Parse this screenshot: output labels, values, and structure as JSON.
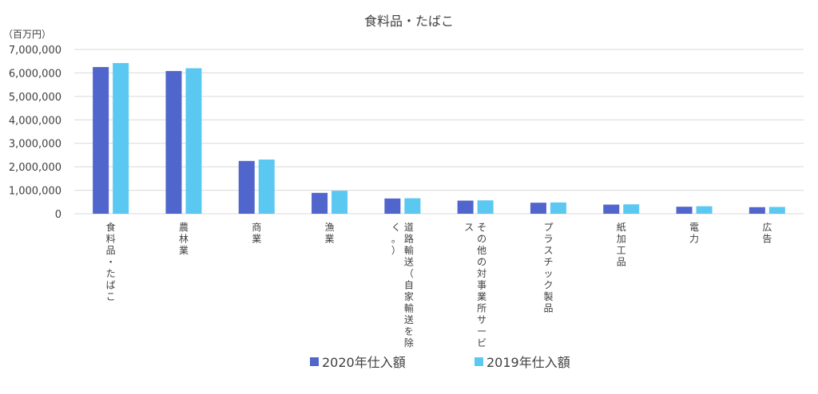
{
  "chart_data": {
    "type": "bar",
    "title": "食料品・たばこ",
    "unit_label": "（百万円）",
    "ylim": [
      0,
      7000000
    ],
    "y_ticks": [
      "0",
      "1,000,000",
      "2,000,000",
      "3,000,000",
      "4,000,000",
      "5,000,000",
      "6,000,000",
      "7,000,000"
    ],
    "grid": true,
    "legend_position": "bottom",
    "categories": [
      "食料品・たばこ",
      "農林業",
      "商業",
      "漁業",
      "道路輸送（自家輸送を除く。）",
      "その他の対事業所サービス",
      "プラスチック製品",
      "紙加工品",
      "電力",
      "広告"
    ],
    "series": [
      {
        "name": "2020年仕入額",
        "color": "#5066cc",
        "values": [
          6250000,
          6080000,
          2250000,
          890000,
          650000,
          560000,
          470000,
          390000,
          300000,
          280000
        ]
      },
      {
        "name": "2019年仕入額",
        "color": "#5bc8f2",
        "values": [
          6420000,
          6200000,
          2310000,
          980000,
          660000,
          570000,
          480000,
          400000,
          320000,
          290000
        ]
      }
    ]
  }
}
